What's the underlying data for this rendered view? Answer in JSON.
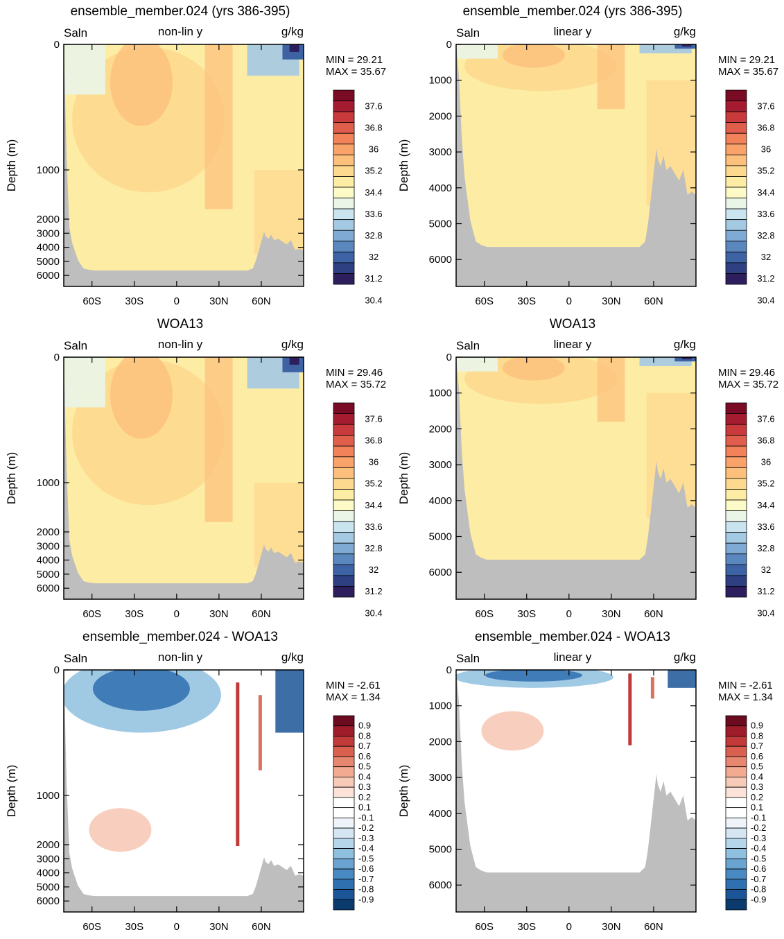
{
  "colors": {
    "land": "#bebebe",
    "salinity_scale": [
      "#2d1e5e",
      "#2e3f82",
      "#3d63a5",
      "#5b87bf",
      "#7eaad4",
      "#a4c9e3",
      "#c9e4ef",
      "#eaf5e8",
      "#fcfac6",
      "#fdeca4",
      "#fdd98f",
      "#fcc07c",
      "#f9a36a",
      "#f1825a",
      "#e05e4c",
      "#c93a3d",
      "#a51c30",
      "#7a0b25"
    ],
    "diff_scale": [
      "#0b3a6c",
      "#1c5597",
      "#2f70b0",
      "#4a8ac2",
      "#6ba3d0",
      "#8fbfdf",
      "#b4d5ea",
      "#d5e6f2",
      "#eef4f9",
      "#ffffff",
      "#ffffff",
      "#fbe3d9",
      "#f7cab7",
      "#f2ab91",
      "#e8876f",
      "#d9604f",
      "#c2393a",
      "#9e1c2a",
      "#6c0a1f"
    ]
  },
  "panels": [
    {
      "id": "p1",
      "kind": "sal",
      "col": 0,
      "ytype": "nonlin",
      "title": "ensemble_member.024 (yrs 386-395)",
      "left": "Saln",
      "center": "non-lin y",
      "right": "g/kg",
      "min_label": "MIN =  29.21",
      "max_label": "MAX =  35.67"
    },
    {
      "id": "p2",
      "kind": "sal",
      "col": 1,
      "ytype": "lin",
      "title": "ensemble_member.024 (yrs 386-395)",
      "left": "Saln",
      "center": "linear y",
      "right": "g/kg",
      "min_label": "MIN =  29.21",
      "max_label": "MAX =  35.67"
    },
    {
      "id": "p3",
      "kind": "sal",
      "col": 0,
      "ytype": "nonlin",
      "title": "WOA13",
      "left": "Saln",
      "center": "non-lin y",
      "right": "g/kg",
      "min_label": "MIN =  29.46",
      "max_label": "MAX =  35.72"
    },
    {
      "id": "p4",
      "kind": "sal",
      "col": 1,
      "ytype": "lin",
      "title": "WOA13",
      "left": "Saln",
      "center": "linear y",
      "right": "g/kg",
      "min_label": "MIN =  29.46",
      "max_label": "MAX =  35.72"
    },
    {
      "id": "p5",
      "kind": "diff",
      "col": 0,
      "ytype": "nonlin",
      "title": "ensemble_member.024 - WOA13",
      "left": "Saln",
      "center": "non-lin y",
      "right": "g/kg",
      "min_label": "MIN = -2.61",
      "max_label": "MAX =   1.34"
    },
    {
      "id": "p6",
      "kind": "diff",
      "col": 1,
      "ytype": "lin",
      "title": "ensemble_member.024 - WOA13",
      "left": "Saln",
      "center": "linear y",
      "right": "g/kg",
      "min_label": "MIN = -2.61",
      "max_label": "MAX =   1.34"
    }
  ],
  "chart_data": {
    "type": "heatmap",
    "ylabel": "Depth (m)",
    "x_ticks": [
      {
        "lat": -60,
        "label": "60S"
      },
      {
        "lat": -30,
        "label": "30S"
      },
      {
        "lat": 0,
        "label": "0"
      },
      {
        "lat": 30,
        "label": "30N"
      },
      {
        "lat": 60,
        "label": "60N"
      }
    ],
    "xlim": [
      -80,
      90
    ],
    "y_ticks_nonlin": [
      {
        "depth": 0,
        "label": "0"
      },
      {
        "depth": 1000,
        "label": "1000"
      },
      {
        "depth": 2000,
        "label": "2000"
      },
      {
        "depth": 3000,
        "label": "3000"
      },
      {
        "depth": 4000,
        "label": "4000"
      },
      {
        "depth": 5000,
        "label": "5000"
      },
      {
        "depth": 6000,
        "label": "6000"
      }
    ],
    "y_ticks_lin": [
      {
        "depth": 0,
        "label": "0"
      },
      {
        "depth": 1000,
        "label": "1000"
      },
      {
        "depth": 2000,
        "label": "2000"
      },
      {
        "depth": 3000,
        "label": "3000"
      },
      {
        "depth": 4000,
        "label": "4000"
      },
      {
        "depth": 5000,
        "label": "5000"
      },
      {
        "depth": 6000,
        "label": "6000"
      }
    ],
    "ylim": [
      0,
      6750
    ],
    "salinity_colorbar_labels": [
      "37.6",
      "36.8",
      "36",
      "35.2",
      "34.4",
      "33.6",
      "32.8",
      "32",
      "31.2",
      "30.4"
    ],
    "diff_colorbar_labels": [
      "0.9",
      "0.8",
      "0.7",
      "0.6",
      "0.5",
      "0.4",
      "0.3",
      "0.2",
      "0.1",
      "-0.1",
      "-0.2",
      "-0.3",
      "-0.4",
      "-0.5",
      "-0.6",
      "-0.7",
      "-0.8",
      "-0.9"
    ]
  }
}
